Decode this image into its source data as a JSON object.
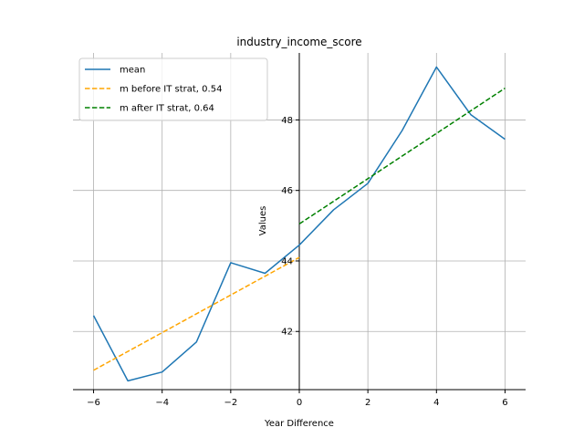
{
  "chart_data": {
    "type": "line",
    "title": "industry_income_score",
    "xlabel": "Year Difference",
    "ylabel": "Values",
    "xlim": [
      -6.6,
      6.6
    ],
    "ylim": [
      40.35,
      49.9
    ],
    "xticks": [
      -6,
      -4,
      -2,
      0,
      2,
      4,
      6
    ],
    "yticks": [
      42,
      44,
      46,
      48
    ],
    "grid": true,
    "legend_position": "top-left",
    "series": [
      {
        "name": "mean",
        "style": "solid",
        "color": "#1f77b4",
        "x": [
          -6,
          -5,
          -4,
          -3,
          -2,
          -1,
          0,
          1,
          2,
          3,
          4,
          5,
          6
        ],
        "y": [
          42.45,
          40.6,
          40.85,
          41.7,
          43.95,
          43.65,
          44.45,
          45.45,
          46.2,
          47.7,
          49.5,
          48.15,
          47.45
        ]
      },
      {
        "name": "m before IT strat, 0.54",
        "style": "dashed",
        "color": "#ffa500",
        "x": [
          -6,
          0
        ],
        "y": [
          40.9,
          44.1
        ]
      },
      {
        "name": "m after IT strat, 0.64",
        "style": "dashed",
        "color": "#008000",
        "x": [
          0,
          6
        ],
        "y": [
          45.05,
          48.9
        ]
      }
    ]
  }
}
